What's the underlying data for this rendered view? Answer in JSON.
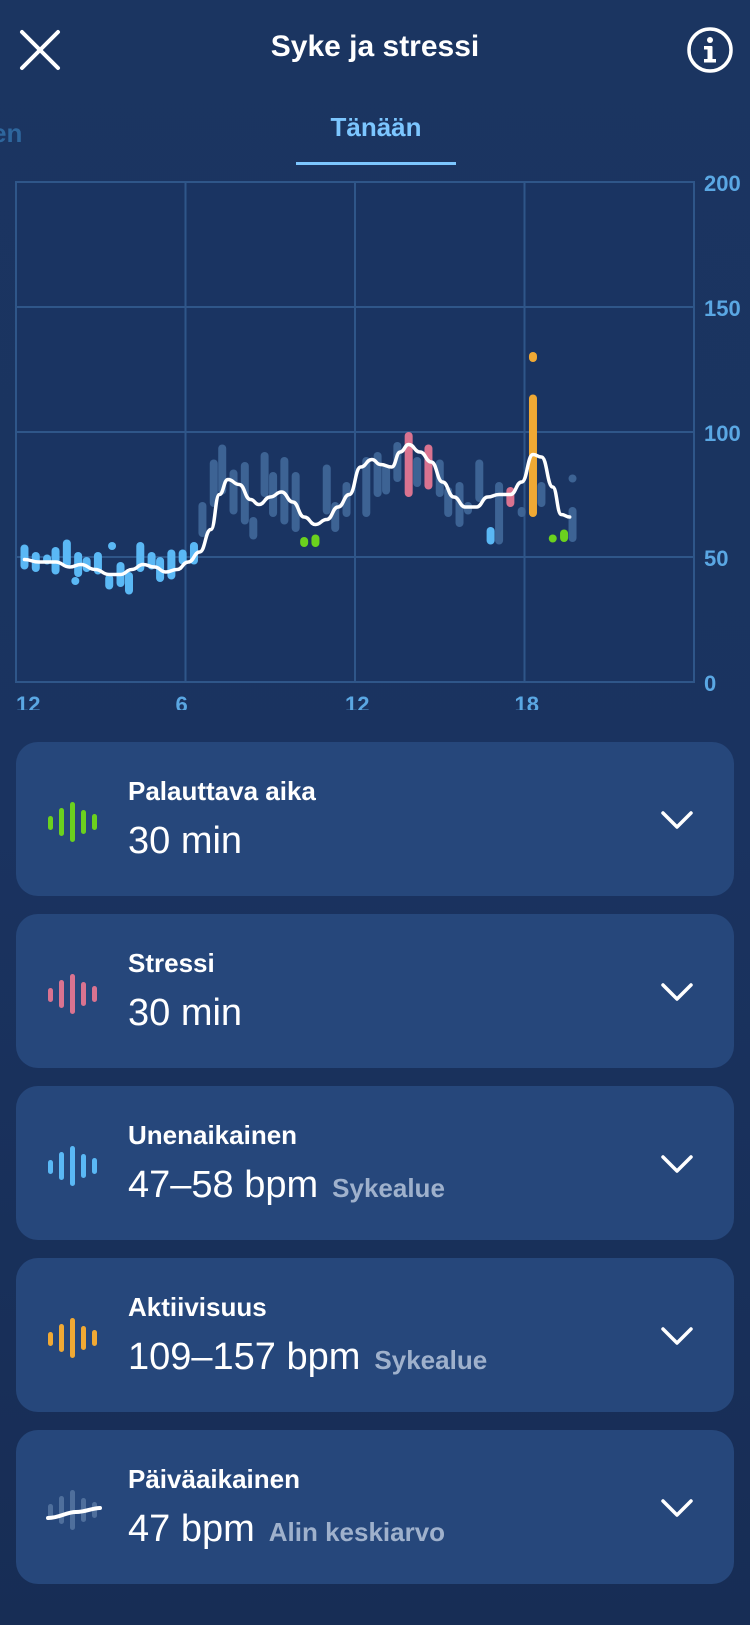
{
  "header": {
    "title": "Syke ja stressi",
    "close_icon": "close-icon",
    "info_icon": "info-icon"
  },
  "tabs": {
    "previous_partial": "en",
    "active": "Tänään"
  },
  "colors": {
    "background": "#1b3561",
    "card": "#26477b",
    "accent_blue": "#7cc6ff",
    "recovery_green": "#6bd11e",
    "stress_pink": "#d97390",
    "sleep_blue": "#5ab8f5",
    "activity_orange": "#f0a934",
    "baseline_bar": "#3d6394"
  },
  "chart_data": {
    "type": "bar",
    "x_ticks": [
      "12",
      "6",
      "12",
      "18"
    ],
    "y_ticks": [
      "200",
      "150",
      "100",
      "50",
      "0"
    ],
    "ylim": [
      0,
      200
    ],
    "grid": true,
    "ranges": [
      {
        "h": 0.3,
        "lo": 45,
        "hi": 55,
        "zone": "sleep"
      },
      {
        "h": 0.7,
        "lo": 44,
        "hi": 52,
        "zone": "sleep"
      },
      {
        "h": 1.1,
        "lo": 47,
        "hi": 51,
        "zone": "sleep"
      },
      {
        "h": 1.4,
        "lo": 43,
        "hi": 54,
        "zone": "sleep"
      },
      {
        "h": 1.8,
        "lo": 46,
        "hi": 57,
        "zone": "sleep"
      },
      {
        "h": 2.1,
        "lo": 40,
        "hi": 42,
        "zone": "sleep"
      },
      {
        "h": 2.2,
        "lo": 42,
        "hi": 52,
        "zone": "sleep"
      },
      {
        "h": 2.5,
        "lo": 44,
        "hi": 50,
        "zone": "sleep"
      },
      {
        "h": 2.9,
        "lo": 43,
        "hi": 52,
        "zone": "sleep"
      },
      {
        "h": 3.3,
        "lo": 37,
        "hi": 43,
        "zone": "sleep"
      },
      {
        "h": 3.4,
        "lo": 55,
        "hi": 56,
        "zone": "sleep"
      },
      {
        "h": 3.7,
        "lo": 38,
        "hi": 48,
        "zone": "sleep"
      },
      {
        "h": 4.0,
        "lo": 35,
        "hi": 44,
        "zone": "sleep"
      },
      {
        "h": 4.4,
        "lo": 44,
        "hi": 56,
        "zone": "sleep"
      },
      {
        "h": 4.8,
        "lo": 45,
        "hi": 52,
        "zone": "sleep"
      },
      {
        "h": 5.1,
        "lo": 40,
        "hi": 50,
        "zone": "sleep"
      },
      {
        "h": 5.5,
        "lo": 41,
        "hi": 53,
        "zone": "sleep"
      },
      {
        "h": 5.9,
        "lo": 47,
        "hi": 53,
        "zone": "sleep"
      },
      {
        "h": 6.3,
        "lo": 47,
        "hi": 56,
        "zone": "sleep"
      },
      {
        "h": 6.6,
        "lo": 58,
        "hi": 72,
        "zone": "day"
      },
      {
        "h": 7.0,
        "lo": 70,
        "hi": 89,
        "zone": "day"
      },
      {
        "h": 7.3,
        "lo": 75,
        "hi": 95,
        "zone": "day"
      },
      {
        "h": 7.7,
        "lo": 67,
        "hi": 85,
        "zone": "day"
      },
      {
        "h": 8.1,
        "lo": 63,
        "hi": 88,
        "zone": "day"
      },
      {
        "h": 8.4,
        "lo": 57,
        "hi": 66,
        "zone": "day"
      },
      {
        "h": 8.8,
        "lo": 74,
        "hi": 92,
        "zone": "day"
      },
      {
        "h": 9.1,
        "lo": 66,
        "hi": 84,
        "zone": "day"
      },
      {
        "h": 9.5,
        "lo": 63,
        "hi": 90,
        "zone": "day"
      },
      {
        "h": 9.9,
        "lo": 60,
        "hi": 84,
        "zone": "day"
      },
      {
        "h": 10.2,
        "lo": 54,
        "hi": 58,
        "zone": "recovery"
      },
      {
        "h": 10.6,
        "lo": 54,
        "hi": 59,
        "zone": "recovery"
      },
      {
        "h": 11.0,
        "lo": 67,
        "hi": 87,
        "zone": "day"
      },
      {
        "h": 11.3,
        "lo": 60,
        "hi": 72,
        "zone": "day"
      },
      {
        "h": 11.7,
        "lo": 66,
        "hi": 80,
        "zone": "day"
      },
      {
        "h": 12.4,
        "lo": 66,
        "hi": 90,
        "zone": "day"
      },
      {
        "h": 12.8,
        "lo": 74,
        "hi": 92,
        "zone": "day"
      },
      {
        "h": 13.1,
        "lo": 75,
        "hi": 87,
        "zone": "day"
      },
      {
        "h": 13.5,
        "lo": 80,
        "hi": 96,
        "zone": "day"
      },
      {
        "h": 13.9,
        "lo": 74,
        "hi": 100,
        "zone": "stress"
      },
      {
        "h": 14.2,
        "lo": 78,
        "hi": 90,
        "zone": "day"
      },
      {
        "h": 14.6,
        "lo": 77,
        "hi": 95,
        "zone": "stress"
      },
      {
        "h": 15.0,
        "lo": 74,
        "hi": 89,
        "zone": "day"
      },
      {
        "h": 15.3,
        "lo": 66,
        "hi": 78,
        "zone": "day"
      },
      {
        "h": 15.7,
        "lo": 62,
        "hi": 80,
        "zone": "day"
      },
      {
        "h": 16.0,
        "lo": 67,
        "hi": 72,
        "zone": "day"
      },
      {
        "h": 16.4,
        "lo": 72,
        "hi": 89,
        "zone": "day"
      },
      {
        "h": 16.8,
        "lo": 55,
        "hi": 62,
        "zone": "sleep"
      },
      {
        "h": 17.1,
        "lo": 55,
        "hi": 80,
        "zone": "day"
      },
      {
        "h": 17.5,
        "lo": 70,
        "hi": 78,
        "zone": "stress"
      },
      {
        "h": 17.9,
        "lo": 66,
        "hi": 70,
        "zone": "day"
      },
      {
        "h": 18.3,
        "lo": 66,
        "hi": 115,
        "zone": "activity"
      },
      {
        "h": 18.3,
        "lo": 128,
        "hi": 132,
        "zone": "activity"
      },
      {
        "h": 18.6,
        "lo": 70,
        "hi": 80,
        "zone": "day"
      },
      {
        "h": 19.0,
        "lo": 56,
        "hi": 59,
        "zone": "recovery"
      },
      {
        "h": 19.4,
        "lo": 56,
        "hi": 61,
        "zone": "recovery"
      },
      {
        "h": 19.7,
        "lo": 56,
        "hi": 70,
        "zone": "day"
      },
      {
        "h": 19.7,
        "lo": 81,
        "hi": 83,
        "zone": "day"
      }
    ],
    "trend_line": [
      [
        0.3,
        49
      ],
      [
        0.8,
        48
      ],
      [
        1.4,
        48
      ],
      [
        1.9,
        46
      ],
      [
        2.3,
        47
      ],
      [
        2.8,
        45
      ],
      [
        3.3,
        43
      ],
      [
        3.7,
        43
      ],
      [
        4.1,
        45
      ],
      [
        4.5,
        47
      ],
      [
        4.9,
        46
      ],
      [
        5.3,
        44
      ],
      [
        5.7,
        45
      ],
      [
        6.1,
        48
      ],
      [
        6.5,
        52
      ],
      [
        6.9,
        61
      ],
      [
        7.2,
        75
      ],
      [
        7.5,
        81
      ],
      [
        7.9,
        79
      ],
      [
        8.3,
        73
      ],
      [
        8.6,
        71
      ],
      [
        9.0,
        74
      ],
      [
        9.4,
        76
      ],
      [
        9.8,
        72
      ],
      [
        10.2,
        66
      ],
      [
        10.6,
        63
      ],
      [
        11.0,
        65
      ],
      [
        11.4,
        70
      ],
      [
        11.8,
        75
      ],
      [
        12.2,
        86
      ],
      [
        12.6,
        89
      ],
      [
        12.9,
        87
      ],
      [
        13.3,
        86
      ],
      [
        13.6,
        92
      ],
      [
        13.9,
        95
      ],
      [
        14.3,
        92
      ],
      [
        14.7,
        88
      ],
      [
        15.1,
        80
      ],
      [
        15.5,
        74
      ],
      [
        15.9,
        70
      ],
      [
        16.3,
        70
      ],
      [
        16.7,
        74
      ],
      [
        17.1,
        75
      ],
      [
        17.5,
        75
      ],
      [
        17.9,
        80
      ],
      [
        18.3,
        91
      ],
      [
        18.6,
        90
      ],
      [
        19.0,
        78
      ],
      [
        19.3,
        67
      ],
      [
        19.6,
        66
      ]
    ]
  },
  "cards": [
    {
      "label": "Palauttava aika",
      "value": "30 min",
      "sub": "",
      "icon": "recovery-bars-icon",
      "color": "#6bd11e"
    },
    {
      "label": "Stressi",
      "value": "30 min",
      "sub": "",
      "icon": "stress-bars-icon",
      "color": "#d97390"
    },
    {
      "label": "Unenaikainen",
      "value": "47–58 bpm",
      "sub": "Sykealue",
      "icon": "sleep-bars-icon",
      "color": "#5ab8f5"
    },
    {
      "label": "Aktiivisuus",
      "value": "109–157 bpm",
      "sub": "Sykealue",
      "icon": "activity-bars-icon",
      "color": "#f0a934"
    },
    {
      "label": "Päiväaikainen",
      "value": "47 bpm",
      "sub": "Alin keskiarvo",
      "icon": "daytime-trend-icon",
      "color": "#9fb1cc"
    }
  ],
  "expand_icon": "chevron-down-icon"
}
